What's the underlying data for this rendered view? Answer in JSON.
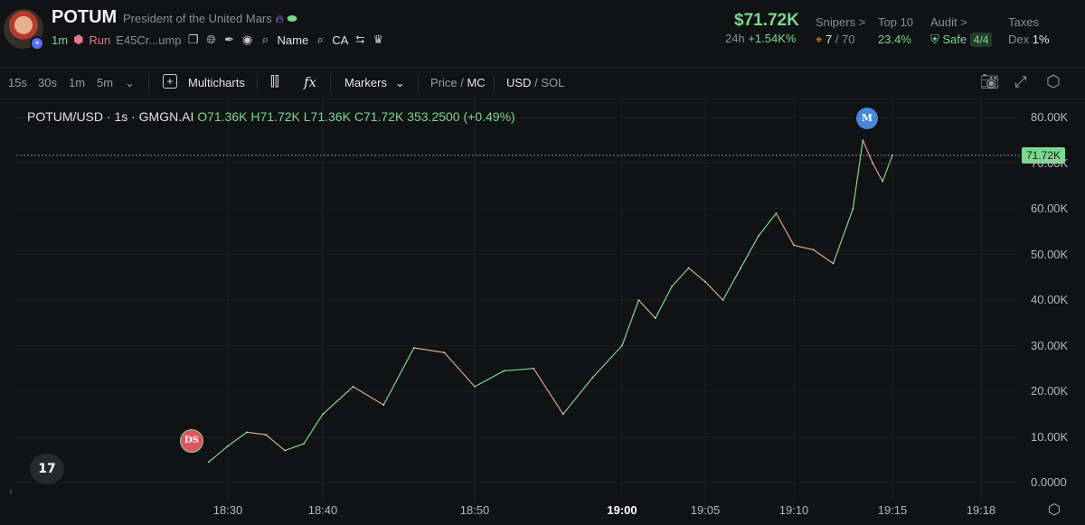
{
  "header": {
    "token_name": "POTUM",
    "description": "President of the United Mars",
    "age": "1m",
    "run_label": "Run",
    "contract": "E45Cr...ump",
    "name_label": "Name",
    "ca_label": "CA",
    "price": "$71.72K",
    "change_period": "24h",
    "change_value": "+1.54K%",
    "snipers_label": "Snipers >",
    "snipers_value": "7",
    "snipers_total": "/ 70",
    "top10_label": "Top 10",
    "top10_value": "23.4%",
    "audit_label": "Audit >",
    "audit_value": "Safe",
    "audit_score": "4/4",
    "taxes_label": "Taxes",
    "taxes_dex": "Dex",
    "taxes_value": "1%"
  },
  "toolbar": {
    "intervals": [
      "15s",
      "30s",
      "1m",
      "5m"
    ],
    "multicharts": "Multicharts",
    "markers": "Markers",
    "price": "Price",
    "mc": "MC",
    "usd": "USD",
    "sol": "SOL"
  },
  "legend": {
    "symbol": "POTUM/USD · 1s · GMGN.AI",
    "o": "O71.36K",
    "h": "H71.72K",
    "l": "L71.36K",
    "c": "C71.72K",
    "change": "353.2500 (+0.49%)"
  },
  "markers": {
    "m": "M",
    "ds": "DS"
  },
  "tv_logo": "17",
  "colors": {
    "up": "#7bd88f",
    "down": "#e05561",
    "accent": "#4a86d9"
  },
  "chart_data": {
    "type": "line",
    "title": "POTUM/USD · 1s · GMGN.AI",
    "last_price_label": "71.72K",
    "x_ticks": [
      "18:30",
      "18:40",
      "18:50",
      "19:00",
      "19:05",
      "19:10",
      "19:15",
      "19:18"
    ],
    "y_ticks": [
      "80.00K",
      "70.00K",
      "60.00K",
      "50.00K",
      "40.00K",
      "30.00K",
      "20.00K",
      "10.00K",
      "0.0000"
    ],
    "ylim": [
      0,
      80000
    ],
    "x": [
      "18:28",
      "18:30",
      "18:32",
      "18:34",
      "18:36",
      "18:38",
      "18:40",
      "18:42",
      "18:44",
      "18:46",
      "18:48",
      "18:50",
      "18:52",
      "18:54",
      "18:56",
      "18:58",
      "19:00",
      "19:01",
      "19:02",
      "19:03",
      "19:04",
      "19:05",
      "19:06",
      "19:07",
      "19:08",
      "19:09",
      "19:10",
      "19:11",
      "19:12",
      "19:13",
      "19:13.5",
      "19:14",
      "19:14.5",
      "19:15"
    ],
    "values": [
      4500,
      8000,
      11000,
      10500,
      7000,
      8500,
      15000,
      21000,
      17000,
      29500,
      28500,
      21000,
      24500,
      25000,
      15000,
      23000,
      30000,
      40000,
      36000,
      43000,
      47000,
      44000,
      40000,
      47000,
      54000,
      59000,
      52000,
      51000,
      48000,
      60000,
      75000,
      70000,
      66000,
      71720
    ],
    "last_price": 71720,
    "grid": true,
    "legend_position": "top-left"
  }
}
